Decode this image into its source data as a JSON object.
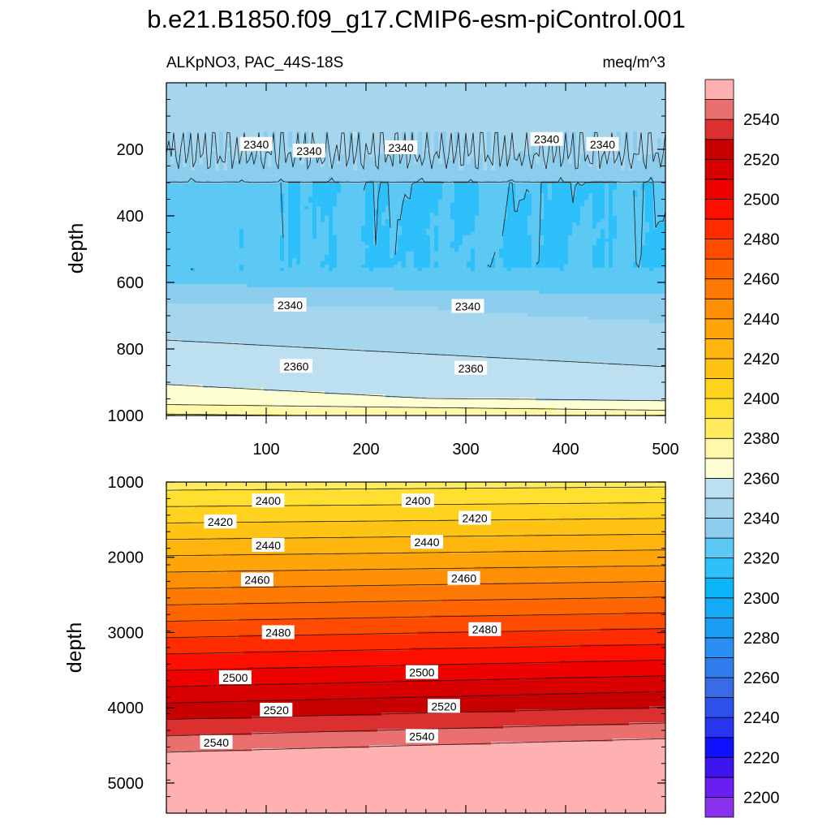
{
  "chart_data": {
    "type": "heatmap",
    "title": "b.e21.B1850.f09_g17.CMIP6-esm-piControl.001",
    "variable_label": "ALKpNO3, PAC_44S-18S",
    "units_label": "meq/m^3",
    "ylabel": "depth",
    "xlim": [
      0,
      500
    ],
    "x_ticks": [
      "100",
      "200",
      "300",
      "400",
      "500"
    ],
    "colorbar": {
      "levels": [
        2200,
        2210,
        2220,
        2230,
        2240,
        2250,
        2260,
        2270,
        2280,
        2290,
        2300,
        2310,
        2320,
        2330,
        2340,
        2350,
        2360,
        2370,
        2380,
        2390,
        2400,
        2410,
        2420,
        2430,
        2440,
        2450,
        2460,
        2470,
        2480,
        2490,
        2500,
        2510,
        2520,
        2530,
        2540,
        2550
      ],
      "colors": [
        "#8a32f0",
        "#6a1ef0",
        "#3c14f0",
        "#1010ff",
        "#2836f0",
        "#2c50e8",
        "#3a6ae6",
        "#2f7cec",
        "#2a8ef2",
        "#1a9ef4",
        "#14aaf6",
        "#0cb4f8",
        "#2ec0fa",
        "#5cc8f4",
        "#8ccdee",
        "#a6d6ee",
        "#bce0f0",
        "#ffffd4",
        "#fff8a8",
        "#ffec60",
        "#ffe030",
        "#ffd21e",
        "#ffc314",
        "#ffb40e",
        "#ffa50a",
        "#ff9006",
        "#ff7a04",
        "#ff6600",
        "#ff4c00",
        "#ff2c00",
        "#ff0f00",
        "#ee0000",
        "#d80000",
        "#c80000",
        "#dc3030",
        "#ea7070",
        "#ffb0b0"
      ],
      "tick_labels": [
        "2200",
        "2220",
        "2240",
        "2260",
        "2280",
        "2300",
        "2320",
        "2340",
        "2360",
        "2380",
        "2400",
        "2420",
        "2440",
        "2460",
        "2480",
        "2500",
        "2520",
        "2540"
      ]
    },
    "panels": [
      {
        "name": "upper",
        "ylim": [
          1000,
          0
        ],
        "y_ticks": [
          "200",
          "400",
          "600",
          "800",
          "1000"
        ],
        "contour_labels": [
          {
            "text": "2340",
            "x": 90,
            "y": 185
          },
          {
            "text": "2340",
            "x": 143,
            "y": 205
          },
          {
            "text": "2340",
            "x": 235,
            "y": 195
          },
          {
            "text": "2340",
            "x": 381,
            "y": 170
          },
          {
            "text": "2340",
            "x": 437,
            "y": 185
          },
          {
            "text": "2340",
            "x": 124,
            "y": 668
          },
          {
            "text": "2340",
            "x": 302,
            "y": 672
          },
          {
            "text": "2360",
            "x": 130,
            "y": 852
          },
          {
            "text": "2360",
            "x": 305,
            "y": 858
          }
        ]
      },
      {
        "name": "lower",
        "ylim": [
          5400,
          1000
        ],
        "y_ticks": [
          "1000",
          "2000",
          "3000",
          "4000",
          "5000"
        ],
        "contour_labels": [
          {
            "text": "2400",
            "x": 102,
            "y": 1250
          },
          {
            "text": "2420",
            "x": 54,
            "y": 1530
          },
          {
            "text": "2440",
            "x": 102,
            "y": 1840
          },
          {
            "text": "2460",
            "x": 91,
            "y": 2300
          },
          {
            "text": "2480",
            "x": 112,
            "y": 3000
          },
          {
            "text": "2500",
            "x": 69,
            "y": 3600
          },
          {
            "text": "2520",
            "x": 110,
            "y": 4030
          },
          {
            "text": "2540",
            "x": 50,
            "y": 4460
          },
          {
            "text": "2400",
            "x": 252,
            "y": 1250
          },
          {
            "text": "2420",
            "x": 309,
            "y": 1480
          },
          {
            "text": "2440",
            "x": 261,
            "y": 1800
          },
          {
            "text": "2460",
            "x": 298,
            "y": 2280
          },
          {
            "text": "2480",
            "x": 319,
            "y": 2960
          },
          {
            "text": "2500",
            "x": 256,
            "y": 3530
          },
          {
            "text": "2520",
            "x": 278,
            "y": 3980
          },
          {
            "text": "2540",
            "x": 256,
            "y": 4380
          }
        ]
      }
    ]
  }
}
